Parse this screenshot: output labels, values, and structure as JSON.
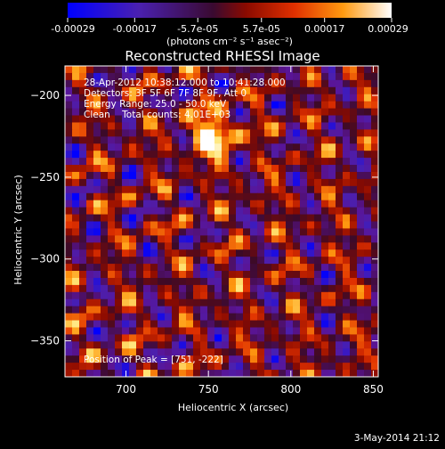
{
  "chart_data": {
    "type": "heatmap",
    "title": "Reconstructed RHESSI Image",
    "xlabel": "Heliocentric X (arcsec)",
    "ylabel": "Heliocentric Y (arcsec)",
    "xlim": [
      663,
      853
    ],
    "ylim": [
      -372,
      -182
    ],
    "x_ticks": [
      700,
      750,
      800,
      850
    ],
    "y_ticks": [
      -200,
      -250,
      -300,
      -350
    ],
    "colorbar": {
      "min": -0.00029,
      "max": 0.00029,
      "tick_values": [
        -0.00029,
        -0.00017,
        -5.7e-05,
        5.7e-05,
        0.00017,
        0.00029
      ],
      "tick_labels": [
        "-0.00029",
        "-0.00017",
        "-5.7e-05",
        "5.7e-05",
        "0.00017",
        "0.00029"
      ],
      "unit_label": "(photons cm⁻² s⁻¹ asec⁻²)",
      "colors": [
        "#0000ff",
        "#5a1aa8",
        "#8a0a00",
        "#e03000",
        "#ff9a10",
        "#ffffff"
      ]
    },
    "annotations": [
      "28-Apr-2012 10:38:12.000 to 10:41:28.000",
      "Detectors: 3F 5F 6F 7F 8F 9F, Att 0",
      "Energy Range: 25.0 - 50.0 keV",
      "Clean    Total counts: 4.01E+03"
    ],
    "peak_label": "Position of Peak = [751, -222]",
    "peak": [
      751,
      -222
    ]
  },
  "footer": {
    "timestamp": "3-May-2014 21:12"
  }
}
